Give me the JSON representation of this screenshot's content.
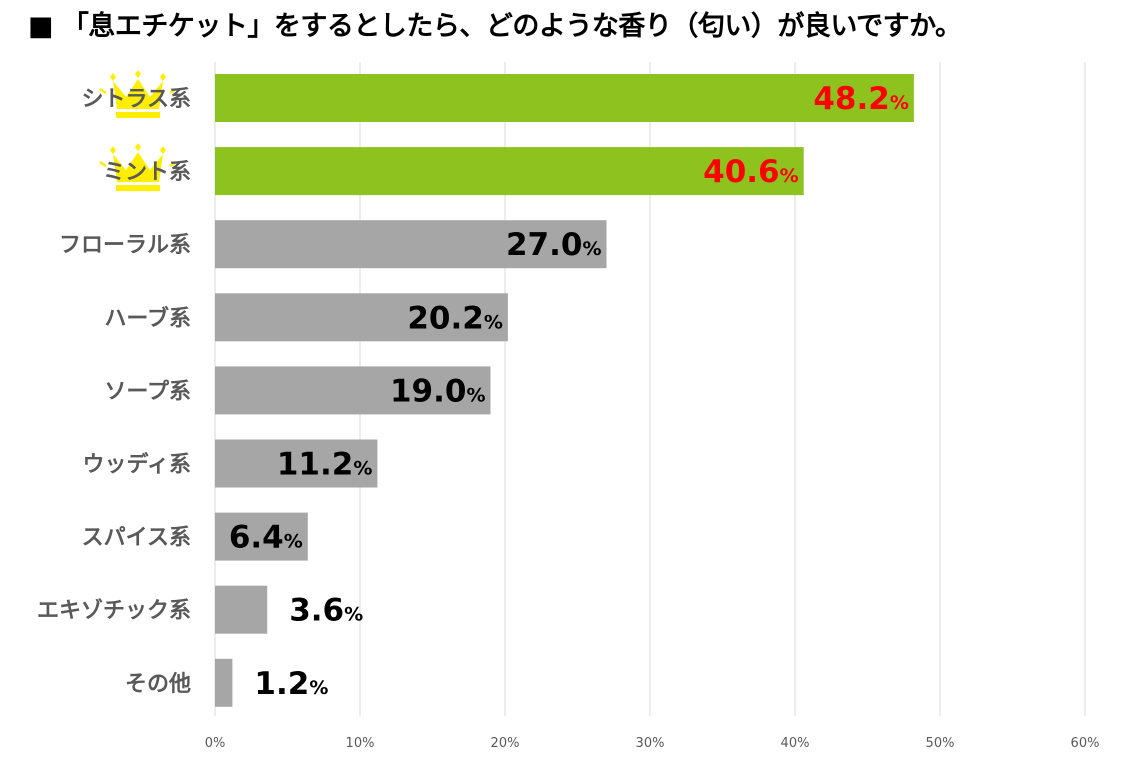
{
  "chart_data": {
    "type": "bar",
    "orientation": "horizontal",
    "title": "■ 「息エチケット」をするとしたら、どのような香り（匂い）が良いですか。",
    "categories": [
      "シトラス系",
      "ミント系",
      "フローラル系",
      "ハーブ系",
      "ソープ系",
      "ウッディ系",
      "スパイス系",
      "エキゾチック系",
      "その他"
    ],
    "values": [
      48.2,
      40.6,
      27.0,
      20.2,
      19.0,
      11.2,
      6.4,
      3.6,
      1.2
    ],
    "value_labels": [
      "48.2",
      "40.6",
      "27.0",
      "20.2",
      "19.0",
      "11.2",
      "6.4",
      "3.6",
      "1.2"
    ],
    "value_suffix": "%",
    "x_ticks": [
      "0%",
      "10%",
      "20%",
      "30%",
      "40%",
      "50%",
      "60%"
    ],
    "xlim": [
      0,
      60
    ],
    "grid": true,
    "legend": "none",
    "highlighted_top": 2,
    "colors": {
      "highlight_bar": "#8dc21f",
      "normal_bar": "#a6a6a6",
      "highlight_label": "#ff0000",
      "normal_label": "#000000",
      "category_label": "#595959",
      "crown": "#ffee00",
      "grid": "#d9d9d9",
      "tick": "#595959"
    },
    "icons": {
      "rank_marker": "crown-icon"
    }
  }
}
